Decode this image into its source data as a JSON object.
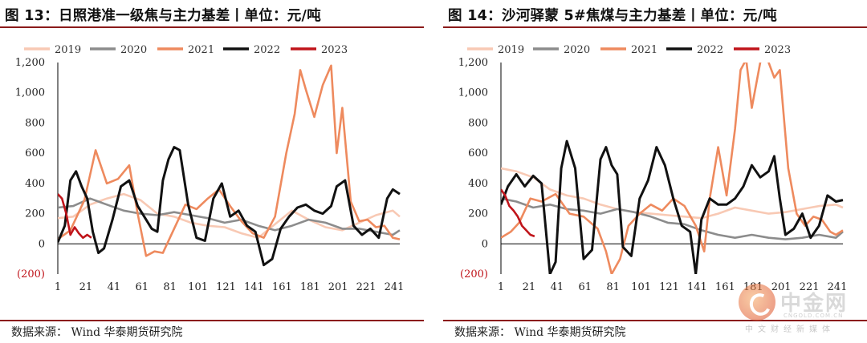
{
  "chart_data": [
    {
      "type": "line",
      "title": "图 13：日照港准一级焦与主力基差丨单位：元/吨",
      "source": "数据来源： Wind 华泰期货研究院",
      "xlabel": "",
      "ylabel": "",
      "x_ticks": [
        "1",
        "21",
        "41",
        "61",
        "81",
        "101",
        "121",
        "141",
        "161",
        "181",
        "201",
        "221",
        "241"
      ],
      "y_ticks": [
        "1,200",
        "1,000",
        "800",
        "600",
        "400",
        "200",
        "0",
        "(200)"
      ],
      "y_tick_values": [
        1200,
        1000,
        800,
        600,
        400,
        200,
        0,
        -200
      ],
      "ylim": [
        -200,
        1200
      ],
      "xlim": [
        1,
        245
      ],
      "grid": false,
      "legend_position": "top",
      "series": [
        {
          "name": "2019",
          "color": "#f8c9b4",
          "x": [
            1,
            12,
            24,
            36,
            48,
            60,
            72,
            84,
            96,
            108,
            120,
            132,
            144,
            156,
            168,
            180,
            192,
            204,
            216,
            228,
            240,
            245
          ],
          "values": [
            170,
            180,
            260,
            300,
            330,
            290,
            200,
            180,
            140,
            120,
            110,
            70,
            40,
            130,
            220,
            160,
            110,
            90,
            140,
            190,
            220,
            180
          ]
        },
        {
          "name": "2020",
          "color": "#8c8c8c",
          "x": [
            1,
            12,
            24,
            36,
            48,
            60,
            72,
            84,
            96,
            108,
            120,
            132,
            144,
            156,
            168,
            180,
            192,
            204,
            216,
            228,
            240,
            245
          ],
          "values": [
            240,
            250,
            300,
            260,
            220,
            200,
            190,
            210,
            190,
            170,
            140,
            160,
            120,
            90,
            120,
            160,
            140,
            100,
            100,
            80,
            60,
            90
          ]
        },
        {
          "name": "2021",
          "color": "#ee8a5e",
          "x": [
            1,
            10,
            20,
            28,
            36,
            44,
            52,
            58,
            64,
            70,
            76,
            84,
            92,
            100,
            108,
            116,
            124,
            132,
            140,
            148,
            156,
            164,
            170,
            174,
            178,
            184,
            190,
            196,
            200,
            204,
            210,
            216,
            222,
            228,
            234,
            240,
            245
          ],
          "values": [
            30,
            90,
            290,
            620,
            400,
            430,
            520,
            200,
            -80,
            -50,
            -60,
            100,
            260,
            230,
            300,
            360,
            250,
            150,
            70,
            40,
            180,
            600,
            860,
            1150,
            1020,
            840,
            1050,
            1180,
            600,
            900,
            280,
            150,
            160,
            110,
            120,
            40,
            30
          ]
        },
        {
          "name": "2022",
          "color": "#111111",
          "x": [
            1,
            6,
            10,
            14,
            18,
            22,
            26,
            30,
            34,
            40,
            46,
            52,
            58,
            64,
            68,
            72,
            76,
            80,
            84,
            88,
            94,
            100,
            106,
            112,
            118,
            124,
            130,
            136,
            142,
            148,
            154,
            160,
            166,
            172,
            178,
            184,
            190,
            196,
            200,
            206,
            212,
            218,
            224,
            230,
            236,
            240,
            245
          ],
          "values": [
            10,
            120,
            420,
            480,
            380,
            300,
            80,
            -60,
            -30,
            160,
            380,
            420,
            250,
            160,
            100,
            80,
            420,
            560,
            640,
            620,
            260,
            40,
            20,
            300,
            400,
            180,
            220,
            120,
            80,
            -140,
            -100,
            100,
            180,
            240,
            260,
            220,
            200,
            250,
            380,
            420,
            120,
            60,
            100,
            40,
            300,
            360,
            330
          ]
        },
        {
          "name": "2023",
          "color": "#c0151b",
          "x": [
            1,
            4,
            7,
            10,
            13,
            16,
            19,
            22,
            25
          ],
          "values": [
            330,
            300,
            200,
            60,
            110,
            70,
            40,
            60,
            40
          ]
        }
      ]
    },
    {
      "type": "line",
      "title": "图 14：沙河驿蒙 5#焦煤与主力基差丨单位：元/吨",
      "source": "数据来源： Wind 华泰期货研究院",
      "xlabel": "",
      "ylabel": "",
      "x_ticks": [
        "1",
        "21",
        "41",
        "61",
        "81",
        "101",
        "121",
        "141",
        "161",
        "181",
        "201",
        "221",
        "241"
      ],
      "y_ticks": [
        "1,200",
        "1,000",
        "800",
        "600",
        "400",
        "200",
        "0",
        "(200)"
      ],
      "y_tick_values": [
        1200,
        1000,
        800,
        600,
        400,
        200,
        0,
        -200
      ],
      "ylim": [
        -200,
        1200
      ],
      "xlim": [
        1,
        245
      ],
      "grid": false,
      "legend_position": "top",
      "series": [
        {
          "name": "2019",
          "color": "#f8c9b4",
          "x": [
            1,
            12,
            24,
            36,
            48,
            60,
            72,
            84,
            96,
            108,
            120,
            132,
            144,
            156,
            168,
            180,
            192,
            204,
            216,
            228,
            240,
            245
          ],
          "values": [
            500,
            480,
            440,
            360,
            320,
            300,
            260,
            230,
            210,
            200,
            190,
            180,
            170,
            200,
            240,
            220,
            200,
            210,
            230,
            250,
            260,
            240
          ]
        },
        {
          "name": "2020",
          "color": "#8c8c8c",
          "x": [
            1,
            12,
            24,
            36,
            48,
            60,
            72,
            84,
            96,
            108,
            120,
            132,
            144,
            156,
            168,
            180,
            192,
            204,
            216,
            228,
            240,
            245
          ],
          "values": [
            300,
            280,
            240,
            260,
            230,
            220,
            200,
            230,
            210,
            180,
            140,
            130,
            90,
            60,
            40,
            60,
            40,
            30,
            40,
            60,
            40,
            80
          ]
        },
        {
          "name": "2021",
          "color": "#ee8a5e",
          "x": [
            1,
            8,
            14,
            22,
            30,
            40,
            50,
            60,
            70,
            76,
            80,
            86,
            92,
            100,
            108,
            116,
            124,
            132,
            140,
            146,
            150,
            156,
            162,
            168,
            172,
            176,
            180,
            186,
            190,
            196,
            200,
            206,
            212,
            218,
            224,
            230,
            236,
            240,
            245
          ],
          "values": [
            40,
            80,
            140,
            300,
            280,
            330,
            200,
            180,
            100,
            -50,
            -200,
            -100,
            120,
            200,
            260,
            220,
            300,
            250,
            120,
            -50,
            300,
            640,
            320,
            760,
            1150,
            1220,
            900,
            1200,
            1250,
            1100,
            1150,
            500,
            200,
            120,
            180,
            160,
            80,
            60,
            90
          ]
        },
        {
          "name": "2022",
          "color": "#111111",
          "x": [
            1,
            6,
            12,
            18,
            24,
            30,
            36,
            40,
            44,
            48,
            54,
            60,
            66,
            72,
            76,
            80,
            84,
            88,
            94,
            100,
            106,
            112,
            118,
            124,
            130,
            136,
            140,
            144,
            150,
            156,
            162,
            168,
            174,
            180,
            186,
            192,
            196,
            200,
            204,
            210,
            216,
            222,
            228,
            234,
            240,
            245
          ],
          "values": [
            260,
            380,
            460,
            380,
            450,
            400,
            -200,
            -120,
            500,
            680,
            500,
            -100,
            -40,
            560,
            640,
            520,
            460,
            -20,
            -80,
            300,
            420,
            640,
            520,
            300,
            120,
            80,
            -200,
            160,
            300,
            260,
            260,
            300,
            380,
            520,
            440,
            480,
            580,
            300,
            60,
            100,
            200,
            40,
            120,
            320,
            280,
            290
          ]
        },
        {
          "name": "2023",
          "color": "#c0151b",
          "x": [
            1,
            4,
            7,
            10,
            13,
            16,
            19,
            22,
            25
          ],
          "values": [
            360,
            320,
            250,
            220,
            180,
            120,
            90,
            60,
            50
          ]
        }
      ]
    }
  ],
  "watermark": {
    "name": "中金网",
    "url": "CNGOLD.COM.CN",
    "tag": "中文财经新媒体"
  }
}
